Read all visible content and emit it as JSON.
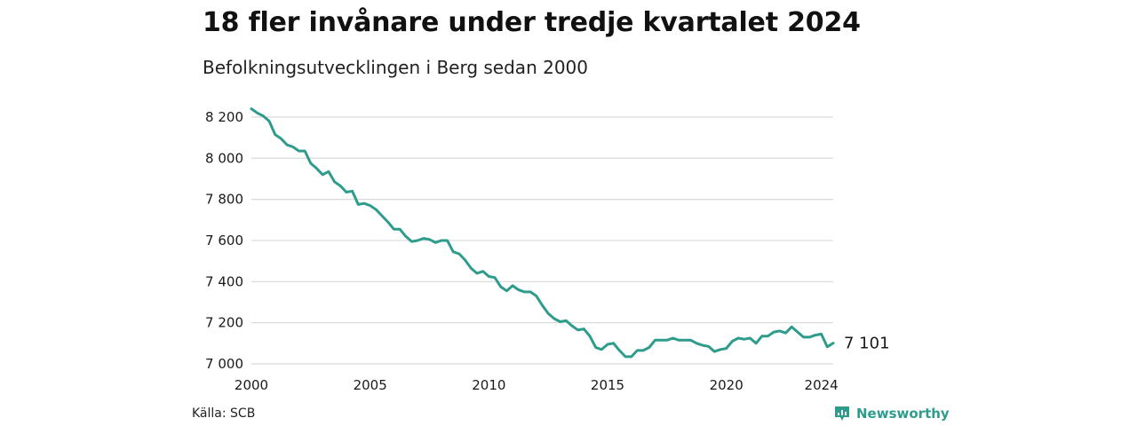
{
  "title": "18 fler invånare under tredje kvartalet 2024",
  "subtitle": "Befolkningsutvecklingen i Berg sedan 2000",
  "source": "Källa: SCB",
  "brand": {
    "name": "Newsworthy",
    "icon": "newsworthy-logo-icon",
    "color": "#2e9c8c"
  },
  "chart_data": {
    "type": "line",
    "title": "18 fler invånare under tredje kvartalet 2024",
    "subtitle": "Befolkningsutvecklingen i Berg sedan 2000",
    "xlabel": "",
    "ylabel": "",
    "xlim": [
      2000,
      2025
    ],
    "ylim": [
      7000,
      8260
    ],
    "x_ticks": [
      2000,
      2005,
      2010,
      2015,
      2020,
      2024
    ],
    "x_tick_labels": [
      "2000",
      "2005",
      "2010",
      "2015",
      "2020",
      "2024"
    ],
    "y_ticks": [
      7000,
      7200,
      7400,
      7600,
      7800,
      8000,
      8200
    ],
    "y_tick_labels": [
      "7 000",
      "7 200",
      "7 400",
      "7 600",
      "7 800",
      "8 000",
      "8 200"
    ],
    "grid": "horizontal",
    "line_color": "#2e9c8c",
    "end_label": "7 101",
    "series": [
      {
        "x": [
          2000.0,
          2000.25,
          2000.5,
          2000.75,
          2001.0,
          2001.25,
          2001.5,
          2001.75,
          2002.0,
          2002.25,
          2002.5,
          2002.75,
          2003.0,
          2003.25,
          2003.5,
          2003.75,
          2004.0,
          2004.25,
          2004.5,
          2004.75,
          2005.0,
          2005.25,
          2005.5,
          2005.75,
          2006.0,
          2006.25,
          2006.5,
          2006.75,
          2007.0,
          2007.25,
          2007.5,
          2007.75,
          2008.0,
          2008.25,
          2008.5,
          2008.75,
          2009.0,
          2009.25,
          2009.5,
          2009.75,
          2010.0,
          2010.25,
          2010.5,
          2010.75,
          2011.0,
          2011.25,
          2011.5,
          2011.75,
          2012.0,
          2012.25,
          2012.5,
          2012.75,
          2013.0,
          2013.25,
          2013.5,
          2013.75,
          2014.0,
          2014.25,
          2014.5,
          2014.75,
          2015.0,
          2015.25,
          2015.5,
          2015.75,
          2016.0,
          2016.25,
          2016.5,
          2016.75,
          2017.0,
          2017.25,
          2017.5,
          2017.75,
          2018.0,
          2018.25,
          2018.5,
          2018.75,
          2019.0,
          2019.25,
          2019.5,
          2019.75,
          2020.0,
          2020.25,
          2020.5,
          2020.75,
          2021.0,
          2021.25,
          2021.5,
          2021.75,
          2022.0,
          2022.25,
          2022.5,
          2022.75,
          2023.0,
          2023.25,
          2023.5,
          2023.75,
          2024.0,
          2024.25,
          2024.5
        ],
        "values": [
          8240,
          8220,
          8205,
          8180,
          8115,
          8095,
          8065,
          8055,
          8035,
          8035,
          7975,
          7950,
          7920,
          7935,
          7885,
          7865,
          7835,
          7840,
          7775,
          7780,
          7770,
          7750,
          7720,
          7690,
          7655,
          7655,
          7620,
          7595,
          7600,
          7610,
          7605,
          7590,
          7600,
          7600,
          7545,
          7535,
          7505,
          7465,
          7440,
          7450,
          7425,
          7420,
          7375,
          7355,
          7380,
          7360,
          7350,
          7350,
          7330,
          7285,
          7245,
          7220,
          7205,
          7210,
          7185,
          7165,
          7170,
          7135,
          7080,
          7070,
          7095,
          7100,
          7065,
          7035,
          7035,
          7065,
          7065,
          7080,
          7115,
          7115,
          7115,
          7125,
          7115,
          7115,
          7115,
          7100,
          7090,
          7085,
          7060,
          7070,
          7075,
          7110,
          7125,
          7120,
          7125,
          7100,
          7135,
          7135,
          7155,
          7160,
          7150,
          7180,
          7155,
          7130,
          7130,
          7140,
          7145,
          7083,
          7101
        ]
      }
    ]
  }
}
